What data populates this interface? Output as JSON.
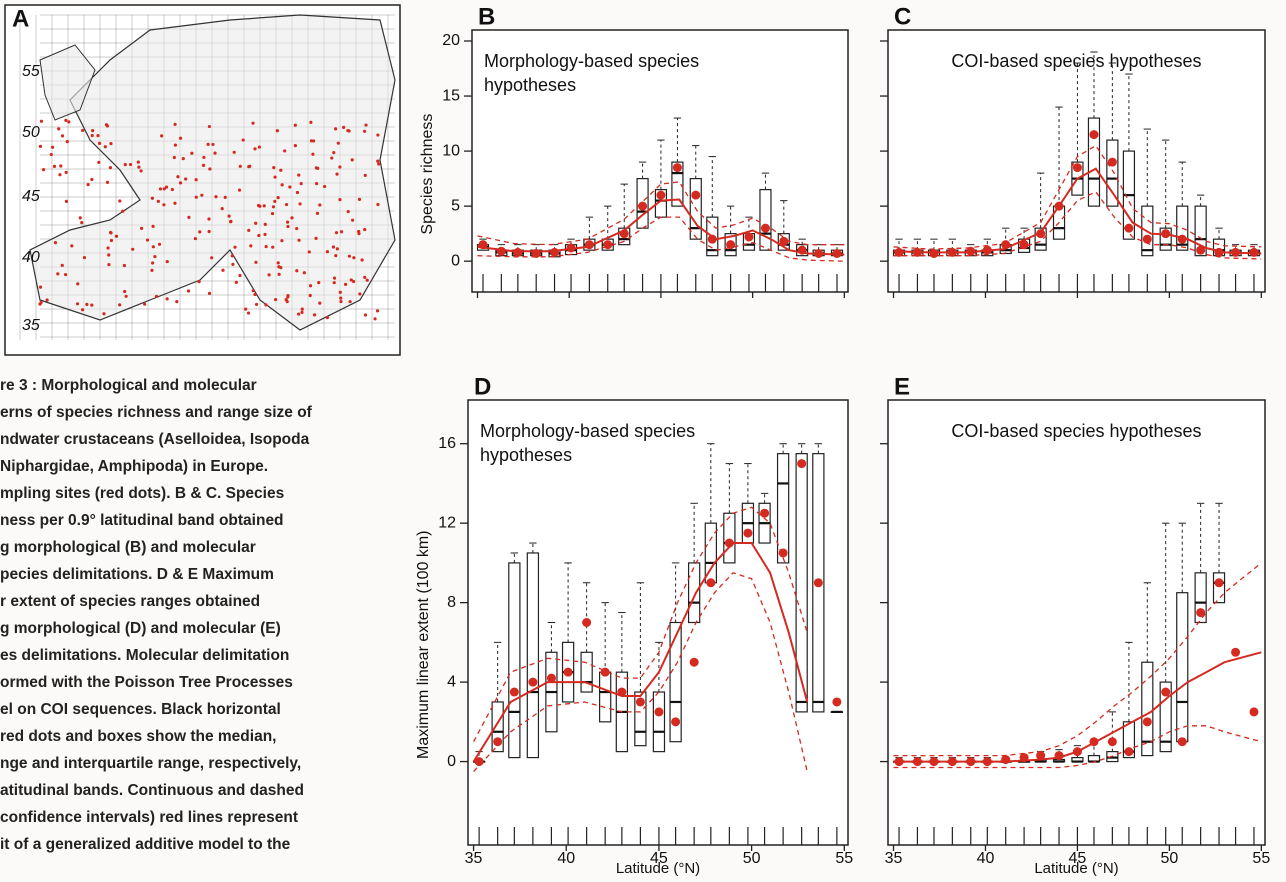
{
  "panel_a": {
    "letter": "A",
    "lat_labels": [
      "55",
      "50",
      "45",
      "40",
      "35"
    ]
  },
  "caption": [
    "re 3 : Morphological and molecular",
    "erns of species richness and range size of",
    "ndwater crustaceans (Aselloidea, Isopoda",
    "Niphargidae, Amphipoda) in Europe.",
    "mpling sites (red dots). B & C. Species",
    "ness per 0.9° latitudinal band obtained",
    "g morphological (B) and molecular",
    "pecies delimitations. D & E Maximum",
    "r extent of species ranges obtained",
    "g morphological (D) and molecular (E)",
    "es delimitations. Molecular delimitation",
    "ormed with the Poisson Tree Processes",
    "el on COI sequences. Black horizontal",
    "red dots and boxes show the median,",
    "nge and interquartile range, respectively,",
    "atitudinal bands. Continuous and dashed",
    "confidence intervals) red lines represent",
    "it of a generalized additive model to the"
  ],
  "chart_data": [
    {
      "type": "box",
      "letter": "B",
      "title": [
        "Morphology-based species",
        "hypotheses"
      ],
      "ylabel": "Species richness",
      "xlim": [
        34.7,
        55.2
      ],
      "ylim": [
        -2.8,
        21
      ],
      "xticks": [
        35,
        40,
        45,
        50,
        55
      ],
      "yticks": [
        0,
        5,
        10,
        15,
        20
      ],
      "show_xtick_labels": false,
      "show_ytick_labels": true,
      "x": [
        35.3,
        36.3,
        37.2,
        38.2,
        39.2,
        40.1,
        41.1,
        42.1,
        43.0,
        44.0,
        45.0,
        45.9,
        46.9,
        47.8,
        48.8,
        49.8,
        50.7,
        51.7,
        52.7,
        53.6,
        54.6
      ],
      "boxes": {
        "q1": [
          1,
          0.5,
          0.5,
          0.5,
          0.4,
          0.6,
          1,
          1,
          1.5,
          3,
          4,
          5,
          2,
          0.5,
          0.5,
          1,
          1,
          1,
          0.5,
          0.5,
          0.5
        ],
        "median": [
          1.3,
          0.8,
          0.7,
          0.7,
          0.7,
          1,
          1.5,
          1.5,
          2,
          4.5,
          5.5,
          8,
          3,
          1,
          1,
          1.5,
          2.5,
          1.5,
          1,
          0.7,
          0.7
        ],
        "q3": [
          1.5,
          1,
          1,
          1,
          1,
          1.5,
          2,
          2,
          3,
          7.5,
          6.5,
          9,
          7.5,
          4,
          2.5,
          2.5,
          6.5,
          2.5,
          1.5,
          1,
          1
        ],
        "max": [
          2,
          1.5,
          1.5,
          1.5,
          1.5,
          2,
          4,
          5,
          7,
          9,
          11,
          13,
          10.5,
          9.5,
          5,
          4,
          8,
          5.5,
          2,
          1.5,
          1.5
        ]
      },
      "points": {
        "color": "#d42a20",
        "values": [
          1.5,
          0.9,
          0.8,
          0.7,
          0.8,
          1.2,
          1.5,
          1.5,
          2.5,
          5,
          6,
          8.5,
          6,
          2,
          1.5,
          2.2,
          3,
          1.8,
          1,
          0.7,
          0.7
        ]
      },
      "fit": {
        "x": [
          35,
          37,
          39,
          41,
          43,
          44,
          45,
          46,
          47,
          48,
          49,
          50,
          51,
          52,
          53,
          55
        ],
        "series": [
          {
            "color": "#d42a20",
            "dashed": false,
            "values": [
              1.3,
              0.9,
              0.9,
              1.3,
              2.8,
              4.2,
              5.5,
              5.6,
              3.2,
              2,
              2.3,
              2.8,
              2,
              1,
              0.7,
              0.6
            ]
          },
          {
            "color": "#d42a20",
            "dashed": true,
            "values": [
              0.5,
              0.4,
              0.4,
              0.8,
              1.8,
              3,
              4,
              4,
              2,
              1,
              1.3,
              1.7,
              1,
              0.3,
              0.1,
              0
            ]
          },
          {
            "color": "#d42a20",
            "dashed": true,
            "values": [
              2.3,
              1.6,
              1.5,
              2,
              3.8,
              5.4,
              7,
              7.2,
              4.5,
              3,
              3.3,
              3.9,
              3,
              1.8,
              1.5,
              1.5
            ]
          }
        ]
      }
    },
    {
      "type": "box",
      "letter": "C",
      "title": [
        "COI-based species hypotheses"
      ],
      "xlim": [
        34.7,
        55.2
      ],
      "ylim": [
        -2.8,
        21
      ],
      "xticks": [
        35,
        40,
        45,
        50,
        55
      ],
      "yticks": [
        0,
        5,
        10,
        15,
        20
      ],
      "show_xtick_labels": false,
      "show_ytick_labels": false,
      "x": [
        35.3,
        36.3,
        37.2,
        38.2,
        39.2,
        40.1,
        41.1,
        42.1,
        43.0,
        44.0,
        45.0,
        45.9,
        46.9,
        47.8,
        48.8,
        49.8,
        50.7,
        51.7,
        52.7,
        53.6,
        54.6
      ],
      "boxes": {
        "q1": [
          0.5,
          0.5,
          0.5,
          0.5,
          0.5,
          0.5,
          0.7,
          0.8,
          1,
          2,
          6,
          5,
          5,
          2,
          0.5,
          1,
          1,
          0.5,
          0.5,
          0.5,
          0.5
        ],
        "median": [
          0.8,
          0.8,
          0.8,
          0.8,
          0.8,
          0.8,
          1,
          1.2,
          1.5,
          3,
          7.5,
          7.5,
          7.5,
          6,
          1,
          1.5,
          1.5,
          2,
          1,
          0.8,
          0.8
        ],
        "q3": [
          1,
          1,
          1,
          1,
          1,
          1,
          1.5,
          2,
          3,
          5,
          9,
          13,
          11,
          10,
          5,
          3,
          5,
          5,
          2,
          1,
          1
        ],
        "max": [
          2,
          2,
          2,
          2,
          1.5,
          2,
          3,
          3,
          8,
          14,
          18,
          19,
          18,
          17,
          12,
          11,
          9,
          6,
          3,
          1.5,
          1.5
        ]
      },
      "points": {
        "color": "#d42a20",
        "values": [
          0.8,
          0.8,
          0.7,
          0.8,
          0.9,
          1,
          1.5,
          1.5,
          2.5,
          5,
          8.5,
          11.5,
          9,
          3,
          2,
          2.5,
          2,
          1,
          0.8,
          0.8,
          0.8
        ]
      },
      "fit": {
        "x": [
          35,
          37,
          39,
          41,
          43,
          44,
          45,
          46,
          47,
          48,
          49,
          50,
          51,
          52,
          53,
          55
        ],
        "series": [
          {
            "color": "#d42a20",
            "dashed": false,
            "values": [
              0.9,
              0.8,
              0.8,
              1.1,
              2.6,
              5,
              7.5,
              8.4,
              6,
              3.5,
              2.5,
              2.4,
              2,
              1.2,
              0.8,
              0.7
            ]
          },
          {
            "color": "#d42a20",
            "dashed": true,
            "values": [
              0.5,
              0.5,
              0.5,
              0.7,
              1.8,
              3.5,
              5.5,
              6.3,
              4,
              2.2,
              1.5,
              1.5,
              1.2,
              0.6,
              0.3,
              0.2
            ]
          },
          {
            "color": "#d42a20",
            "dashed": true,
            "values": [
              1.3,
              1.1,
              1.2,
              1.6,
              3.5,
              6.5,
              9.5,
              10.5,
              8,
              4.8,
              3.5,
              3.4,
              2.8,
              1.8,
              1.4,
              1.3
            ]
          }
        ]
      }
    },
    {
      "type": "box",
      "letter": "D",
      "title": [
        "Morphology-based species",
        "hypotheses"
      ],
      "ylabel": "Maximum linear extent (100 km)",
      "xlabel": "Latitude (°N)",
      "xlim": [
        34.7,
        55.2
      ],
      "ylim": [
        -4.2,
        18.2
      ],
      "xticks": [
        35,
        40,
        45,
        50,
        55
      ],
      "yticks": [
        0,
        4,
        8,
        12,
        16
      ],
      "show_xtick_labels": true,
      "show_ytick_labels": true,
      "x": [
        35.3,
        36.3,
        37.2,
        38.2,
        39.2,
        40.1,
        41.1,
        42.1,
        43.0,
        44.0,
        45.0,
        45.9,
        46.9,
        47.8,
        48.8,
        49.8,
        50.7,
        51.7,
        52.7,
        53.6,
        54.6
      ],
      "boxes": {
        "q1": [
          0,
          0.5,
          0.2,
          0.2,
          1.5,
          3,
          3.5,
          2,
          0.5,
          0.8,
          0.5,
          1,
          7,
          9,
          10,
          11,
          11,
          10,
          2.5,
          2.5,
          2.5
        ],
        "median": [
          0,
          1.5,
          2.5,
          3.5,
          3.5,
          4.5,
          4,
          3.5,
          2.5,
          1.5,
          1.5,
          3,
          8,
          10,
          11,
          12,
          12,
          14,
          3,
          3,
          2.5
        ],
        "q3": [
          0,
          3,
          10,
          10.5,
          5.5,
          6,
          5.5,
          4.5,
          4.5,
          3.5,
          3.5,
          7,
          10,
          12,
          12.5,
          13,
          13,
          15.5,
          15.5,
          15.5,
          2.5
        ],
        "max": [
          0.5,
          6,
          10.5,
          11,
          7,
          10,
          9,
          8,
          7.5,
          9,
          6,
          10,
          13,
          16,
          15,
          15,
          13.5,
          16,
          16,
          16,
          2.5
        ]
      },
      "points": {
        "color": "#d42a20",
        "values": [
          0,
          1,
          3.5,
          4,
          4.2,
          4.5,
          7,
          4.5,
          3.5,
          3,
          2.5,
          2,
          5,
          9,
          11,
          11.5,
          12.5,
          10.5,
          15,
          9,
          3
        ]
      },
      "fit": {
        "x": [
          35,
          37,
          39,
          41,
          43,
          44,
          45,
          46,
          47,
          48,
          49,
          50,
          51,
          52,
          53,
          55
        ],
        "series": [
          {
            "color": "#d42a20",
            "dashed": false,
            "values": [
              0,
              3,
              4,
              4,
              3.3,
              3.3,
              4.5,
              6.5,
              8.5,
              10,
              11,
              11,
              9.5,
              6.5,
              3,
              null
            ]
          },
          {
            "color": "#d42a20",
            "dashed": true,
            "values": [
              -0.5,
              1.5,
              2.8,
              3,
              2.5,
              2.5,
              3.5,
              5,
              7,
              8.5,
              9.5,
              9.2,
              7,
              3.5,
              -0.5,
              null
            ]
          },
          {
            "color": "#d42a20",
            "dashed": true,
            "values": [
              1,
              4.5,
              5.2,
              5,
              4.2,
              4.2,
              5.5,
              8,
              10,
              11.5,
              12.5,
              12.8,
              12,
              9.5,
              6.5,
              null
            ]
          }
        ]
      }
    },
    {
      "type": "box",
      "letter": "E",
      "title": [
        "COI-based species hypotheses"
      ],
      "xlabel": "Latitude (°N)",
      "xlim": [
        34.7,
        55.2
      ],
      "ylim": [
        -4.2,
        18.2
      ],
      "xticks": [
        35,
        40,
        45,
        50,
        55
      ],
      "yticks": [
        0,
        4,
        8,
        12,
        16
      ],
      "show_xtick_labels": true,
      "show_ytick_labels": false,
      "x": [
        35.3,
        36.3,
        37.2,
        38.2,
        39.2,
        40.1,
        41.1,
        42.1,
        43.0,
        44.0,
        45.0,
        45.9,
        46.9,
        47.8,
        48.8,
        49.8,
        50.7,
        51.7,
        52.7,
        53.6,
        54.6
      ],
      "boxes": {
        "q1": [
          0,
          0,
          0,
          0,
          0,
          0,
          0,
          0,
          0,
          0,
          0,
          0,
          0,
          0.2,
          0.3,
          0.5,
          1,
          7,
          8,
          null,
          null
        ],
        "median": [
          0,
          0,
          0,
          0,
          0,
          0,
          0,
          0,
          0,
          0,
          0,
          0,
          0.2,
          0.5,
          1,
          1,
          3,
          8,
          9,
          null,
          null
        ],
        "q3": [
          0,
          0,
          0,
          0,
          0,
          0,
          0,
          0,
          0.1,
          0.1,
          0.2,
          0.3,
          0.5,
          2,
          5,
          4,
          8.5,
          9.5,
          9.5,
          null,
          null
        ],
        "max": [
          0.2,
          0.2,
          0.2,
          0.2,
          0.2,
          0.2,
          0.2,
          0.2,
          0.5,
          0.6,
          0.8,
          1,
          2.5,
          6,
          9,
          12,
          12,
          13,
          13,
          null,
          null
        ]
      },
      "points": {
        "color": "#d42a20",
        "values": [
          0,
          0,
          0,
          0,
          0,
          0,
          0.1,
          0.2,
          0.3,
          0.3,
          0.5,
          1,
          1,
          0.5,
          2,
          3.5,
          1,
          7.5,
          9,
          5.5,
          2.5
        ]
      },
      "fit": {
        "x": [
          35,
          37,
          39,
          41,
          43,
          44,
          45,
          46,
          47,
          48,
          49,
          50,
          51,
          52,
          53,
          55
        ],
        "series": [
          {
            "color": "#d42a20",
            "dashed": false,
            "values": [
              0,
              0,
              0,
              0,
              0.1,
              0.2,
              0.5,
              1,
              1.5,
              2,
              2.5,
              3.3,
              4,
              4.5,
              5,
              5.5
            ]
          },
          {
            "color": "#d42a20",
            "dashed": true,
            "values": [
              -0.3,
              -0.3,
              -0.3,
              -0.3,
              -0.3,
              -0.3,
              -0.2,
              0,
              0.3,
              0.7,
              1,
              1.5,
              1.8,
              1.8,
              1.5,
              1
            ]
          },
          {
            "color": "#d42a20",
            "dashed": true,
            "values": [
              0.3,
              0.3,
              0.3,
              0.3,
              0.5,
              0.8,
              1.3,
              2,
              2.8,
              3.5,
              4.3,
              5.2,
              6.3,
              7.5,
              8.5,
              10
            ]
          }
        ]
      }
    }
  ]
}
